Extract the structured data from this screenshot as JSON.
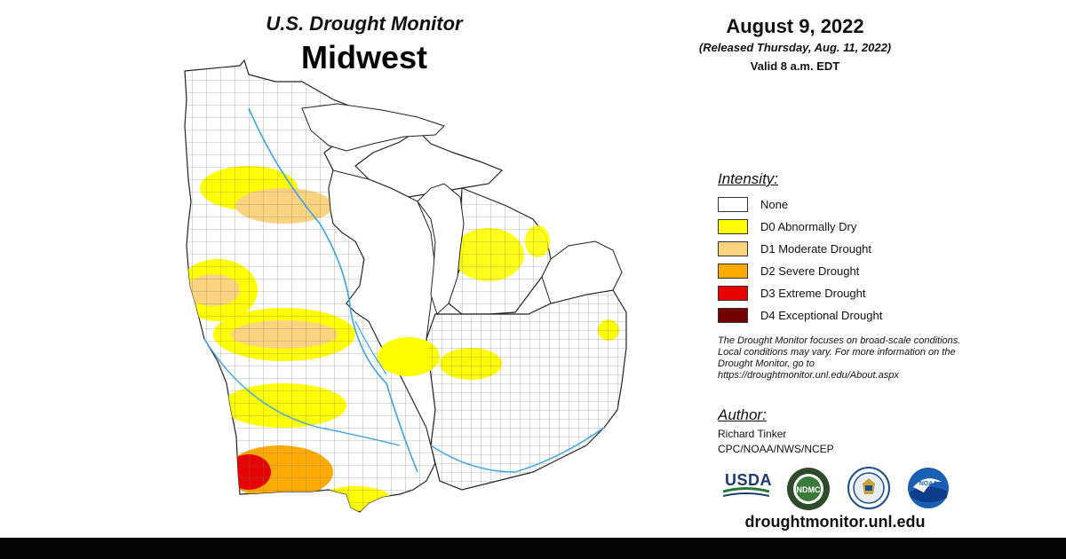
{
  "header": {
    "title": "U.S. Drought Monitor",
    "region": "Midwest",
    "date": "August 9, 2022",
    "released": "(Released Thursday, Aug. 11, 2022)",
    "valid": "Valid 8 a.m. EDT"
  },
  "legend": {
    "title": "Intensity:",
    "items": [
      {
        "label": "None",
        "color": "#ffffff"
      },
      {
        "label": "D0 Abnormally Dry",
        "color": "#ffff00"
      },
      {
        "label": "D1 Moderate Drought",
        "color": "#fcd37f"
      },
      {
        "label": "D2 Severe Drought",
        "color": "#ffaa00"
      },
      {
        "label": "D3 Extreme Drought",
        "color": "#e60000"
      },
      {
        "label": "D4 Exceptional Drought",
        "color": "#730000"
      }
    ]
  },
  "note": "The Drought Monitor focuses on broad-scale conditions. Local conditions may vary. For more information on the Drought Monitor, go to https://droughtmonitor.unl.edu/About.aspx",
  "author": {
    "title": "Author:",
    "name": "Richard Tinker",
    "org": "CPC/NOAA/NWS/NCEP"
  },
  "logos": {
    "usda": "USDA",
    "ndmc": "NDMC",
    "noaa": "NOAA"
  },
  "site": "droughtmonitor.unl.edu"
}
